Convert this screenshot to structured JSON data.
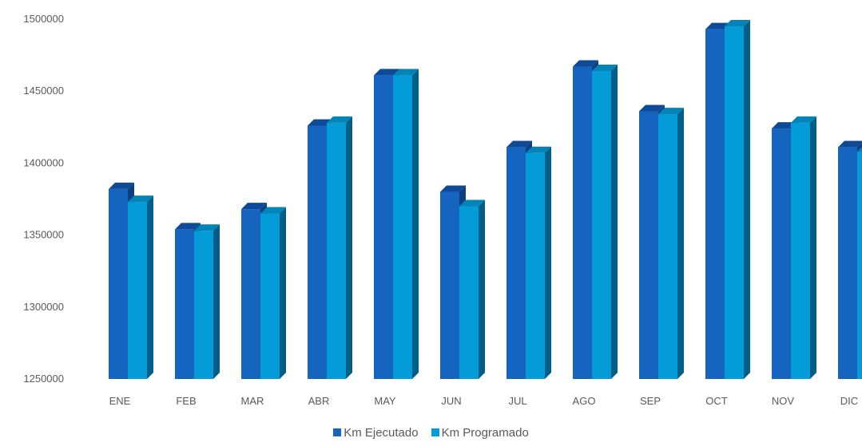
{
  "chart_data": {
    "type": "bar",
    "categories": [
      "ENE",
      "FEB",
      "MAR",
      "ABR",
      "MAY",
      "JUN",
      "JUL",
      "AGO",
      "SEP",
      "OCT",
      "NOV",
      "DIC"
    ],
    "series": [
      {
        "name": "Km Ejecutado",
        "color": "#1565c0",
        "values": [
          1382000,
          1354000,
          1368000,
          1426000,
          1461000,
          1380000,
          1411000,
          1467000,
          1436000,
          1493000,
          1424000,
          1411000
        ]
      },
      {
        "name": "Km Programado",
        "color": "#039bd8",
        "values": [
          1373000,
          1353000,
          1365000,
          1428000,
          1461000,
          1370000,
          1407000,
          1464000,
          1434000,
          1495000,
          1428000,
          1408000
        ]
      }
    ],
    "yticks": [
      "1250000",
      "1300000",
      "1350000",
      "1400000",
      "1450000",
      "1500000"
    ],
    "ylim": [
      1250000,
      1500000
    ],
    "grid": false,
    "legend_position": "bottom",
    "style": "3d-clustered-column"
  }
}
